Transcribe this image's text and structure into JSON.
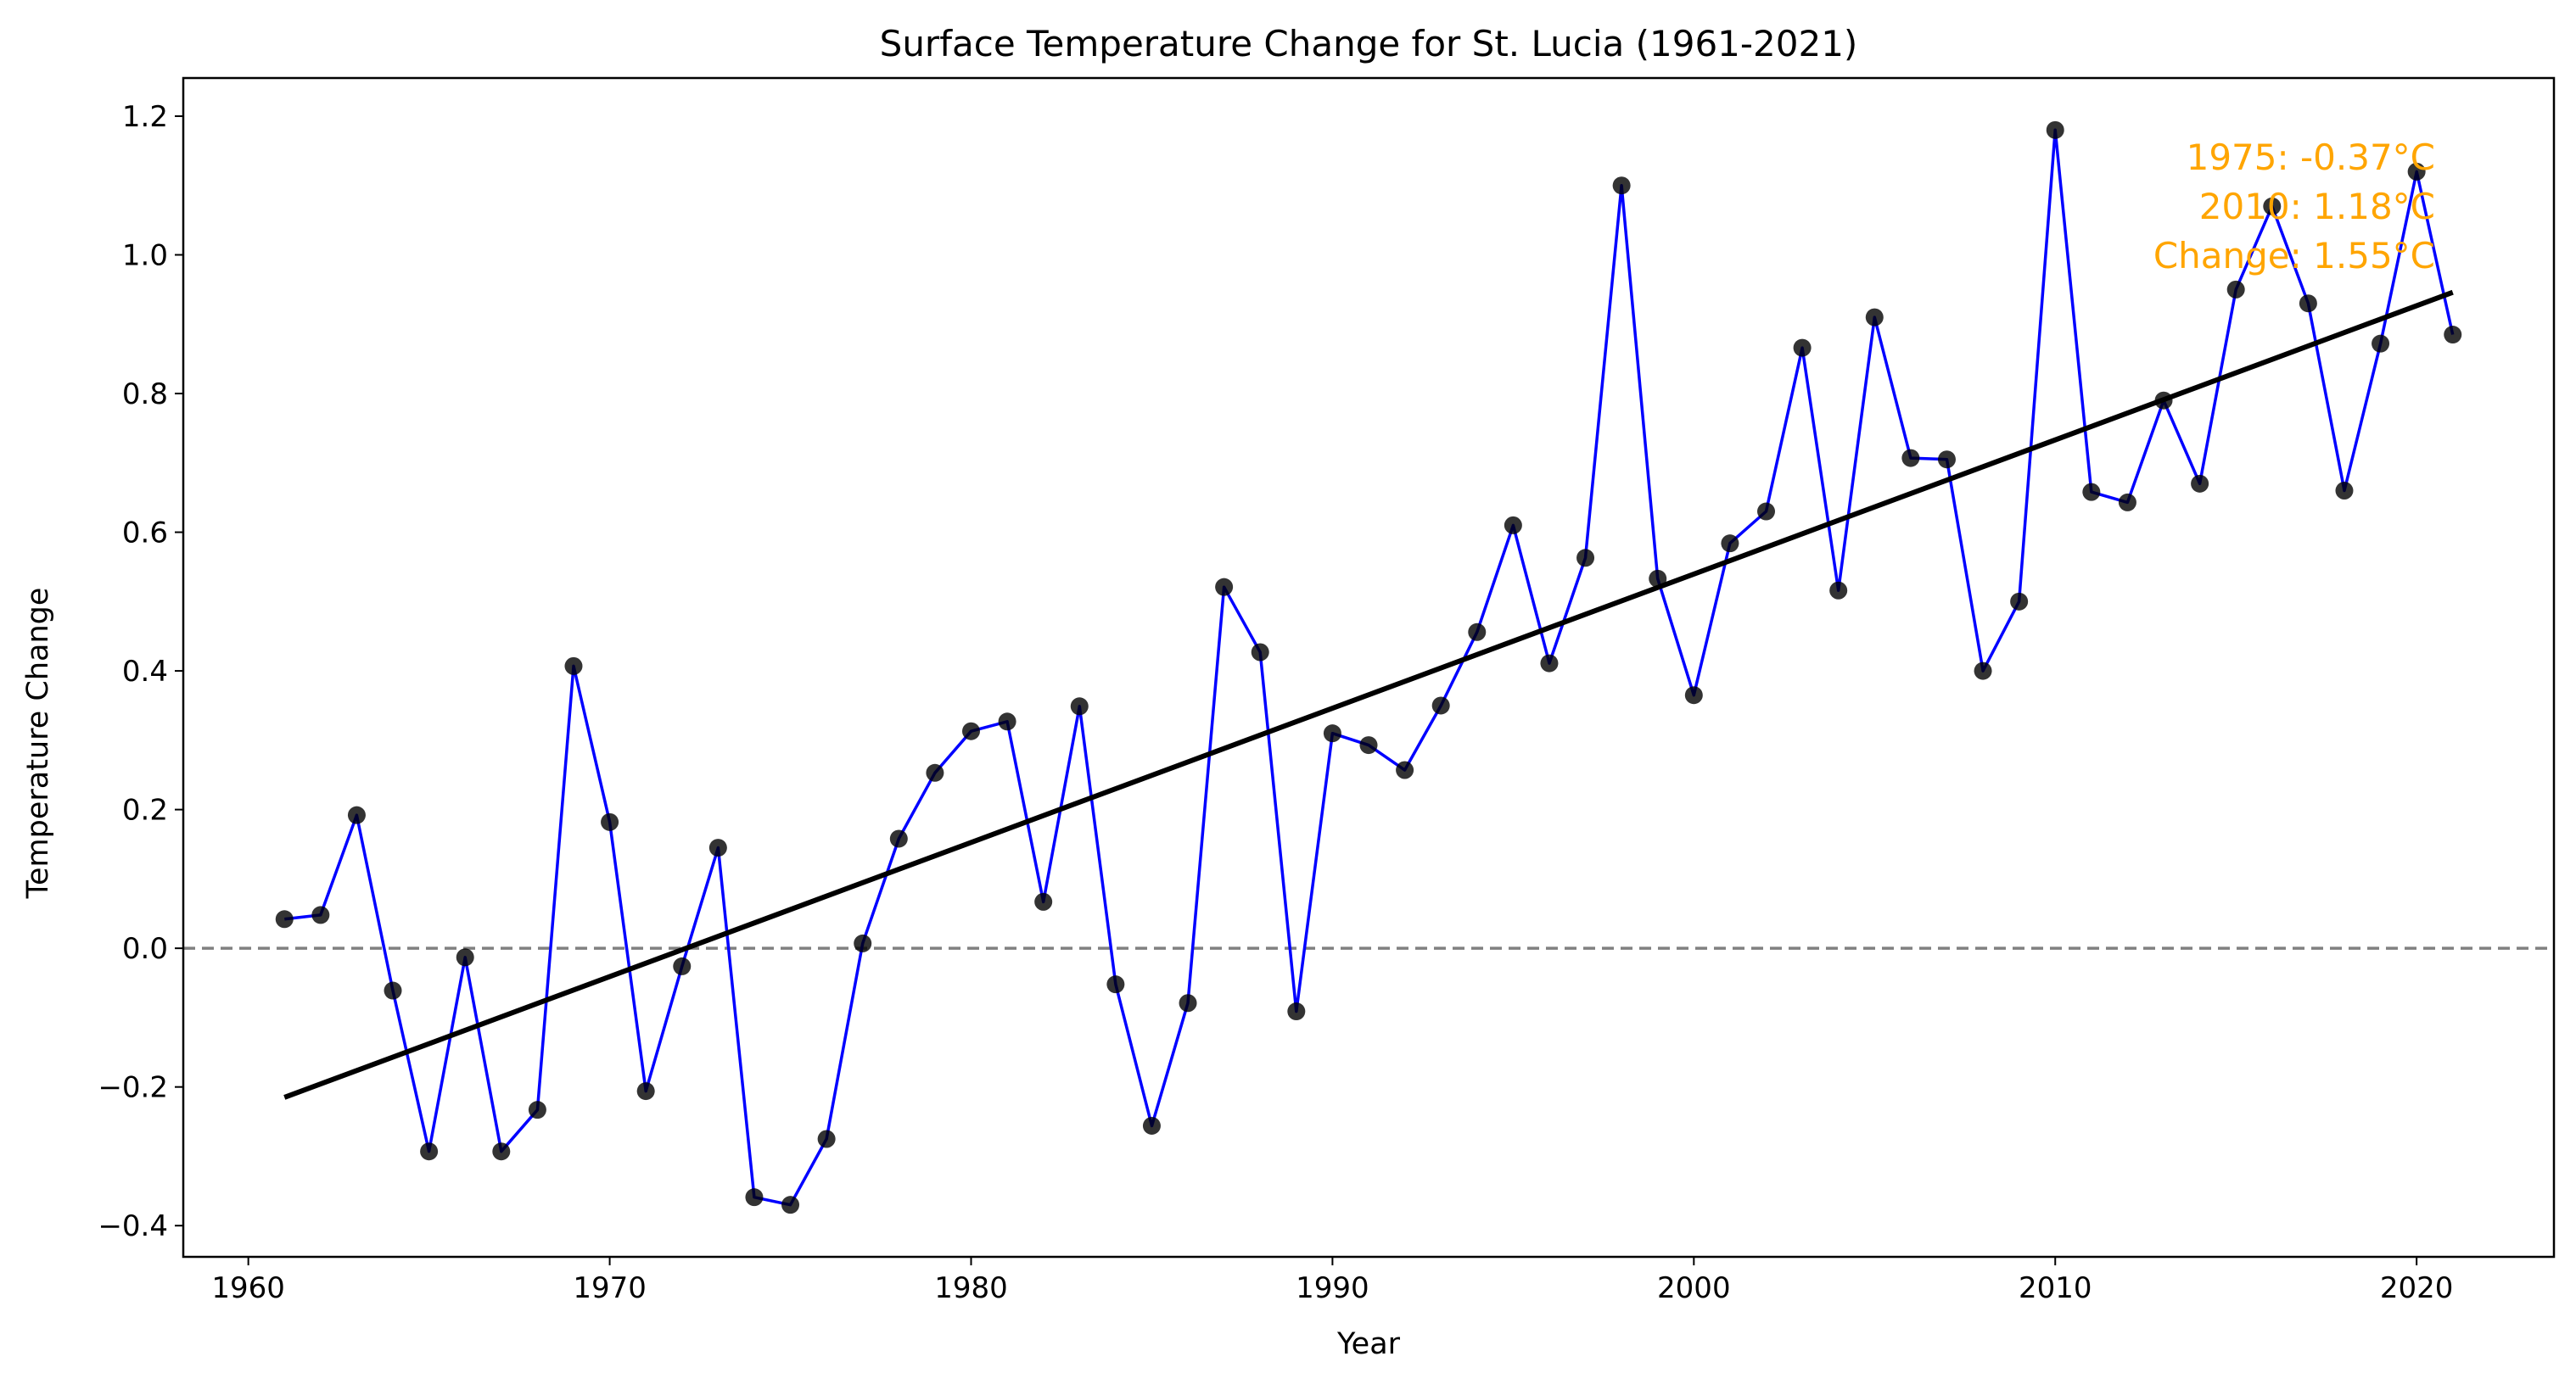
{
  "chart_data": {
    "type": "line",
    "title": "Surface Temperature Change for St. Lucia (1961-2021)",
    "xlabel": "Year",
    "ylabel": "Temperature Change",
    "xlim": [
      1958.2,
      2023.8
    ],
    "ylim": [
      -0.445,
      1.255
    ],
    "x_ticks": [
      1960,
      1970,
      1980,
      1990,
      2000,
      2010,
      2020
    ],
    "x_tick_labels": [
      "1960",
      "1970",
      "1980",
      "1990",
      "2000",
      "2010",
      "2020"
    ],
    "y_ticks": [
      -0.4,
      -0.2,
      0.0,
      0.2,
      0.4,
      0.6,
      0.8,
      1.0,
      1.2
    ],
    "y_tick_labels": [
      "−0.4",
      "−0.2",
      "0.0",
      "0.2",
      "0.4",
      "0.6",
      "0.8",
      "1.0",
      "1.2"
    ],
    "grid": false,
    "series": [
      {
        "x": [
          1961,
          1962,
          1963,
          1964,
          1965,
          1966,
          1967,
          1968,
          1969,
          1970,
          1971,
          1972,
          1973,
          1974,
          1975,
          1976,
          1977,
          1978,
          1979,
          1980,
          1981,
          1982,
          1983,
          1984,
          1985,
          1986,
          1987,
          1988,
          1989,
          1990,
          1991,
          1992,
          1993,
          1994,
          1995,
          1996,
          1997,
          1998,
          1999,
          2000,
          2001,
          2002,
          2003,
          2004,
          2005,
          2006,
          2007,
          2008,
          2009,
          2010,
          2011,
          2012,
          2013,
          2014,
          2015,
          2016,
          2017,
          2018,
          2019,
          2020,
          2021
        ],
        "y": [
          0.042,
          0.048,
          0.192,
          -0.061,
          -0.293,
          -0.013,
          -0.293,
          -0.233,
          0.407,
          0.182,
          -0.206,
          -0.026,
          0.145,
          -0.359,
          -0.37,
          -0.275,
          0.007,
          0.158,
          0.253,
          0.313,
          0.327,
          0.067,
          0.349,
          -0.052,
          -0.256,
          -0.079,
          0.521,
          0.427,
          -0.091,
          0.31,
          0.293,
          0.257,
          0.35,
          0.456,
          0.61,
          0.411,
          0.563,
          1.1,
          0.533,
          0.365,
          0.584,
          0.63,
          0.866,
          0.516,
          0.91,
          0.707,
          0.705,
          0.4,
          0.5,
          1.18,
          0.658,
          0.643,
          0.79,
          0.67,
          0.95,
          1.07,
          0.93,
          0.66,
          0.872,
          1.12,
          0.885
        ],
        "line_color": "#0000ff",
        "marker_color": "#000000"
      }
    ],
    "trend_line": {
      "x": [
        1961,
        2021
      ],
      "y": [
        -0.215,
        0.946
      ],
      "color": "#000000"
    },
    "reference_line": {
      "y": 0.0,
      "style": "dashed",
      "color": "#808080"
    },
    "annotation": {
      "lines": [
        "1975: -0.37°C",
        "2010: 1.18°C",
        "Change: 1.55°C"
      ],
      "color": "#ffa500",
      "placement": "top-right"
    }
  }
}
